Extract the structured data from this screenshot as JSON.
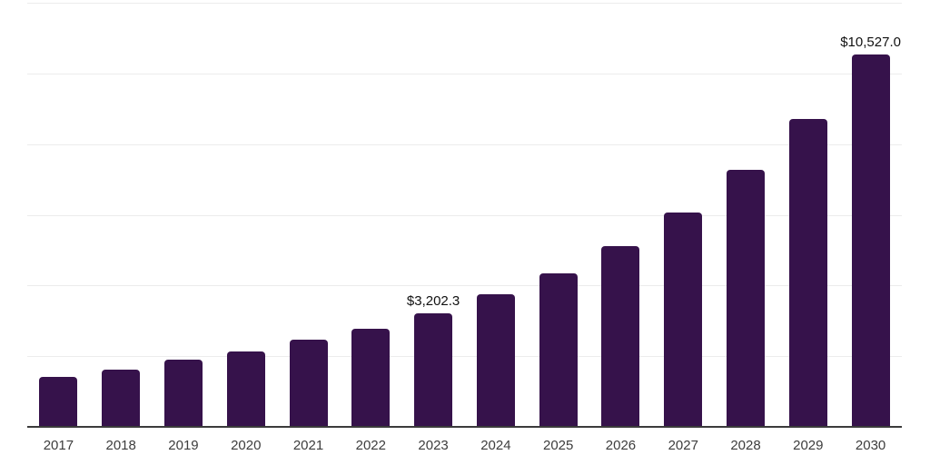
{
  "chart_data": {
    "type": "bar",
    "title": "",
    "xlabel": "",
    "ylabel": "",
    "categories": [
      "2017",
      "2018",
      "2019",
      "2020",
      "2021",
      "2022",
      "2023",
      "2024",
      "2025",
      "2026",
      "2027",
      "2028",
      "2029",
      "2030"
    ],
    "values": [
      1410,
      1620,
      1900,
      2130,
      2470,
      2780,
      3202.3,
      3750,
      4340,
      5110,
      6060,
      7270,
      8710,
      10527.0
    ],
    "value_labels": [
      null,
      null,
      null,
      null,
      null,
      null,
      "$3,202.3",
      null,
      null,
      null,
      null,
      null,
      null,
      "$10,527.0"
    ],
    "ylim": [
      0,
      12000
    ],
    "gridline_values": [
      2000,
      4000,
      6000,
      8000,
      10000,
      12000
    ],
    "grid": "horizontal",
    "legend": "none",
    "y_axis_labels_visible": false,
    "colors": {
      "bar": "#36124B",
      "axis_line": "#3B3B3B",
      "gridline": "#ECECEC",
      "tick_label": "#3D3D3D",
      "value_label": "#111111",
      "background": "#FFFFFF"
    }
  }
}
